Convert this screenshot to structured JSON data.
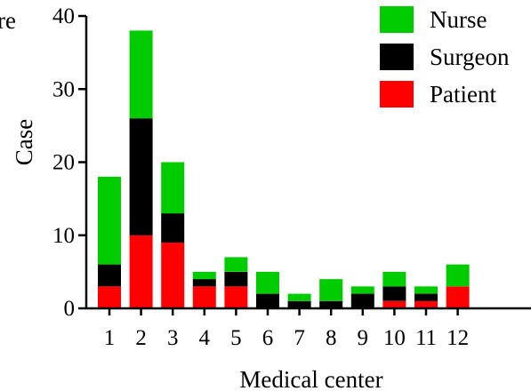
{
  "figure": {
    "cut_text": "re"
  },
  "chart_data": {
    "type": "bar",
    "stacked": true,
    "categories": [
      "1",
      "2",
      "3",
      "4",
      "5",
      "6",
      "7",
      "8",
      "9",
      "10",
      "11",
      "12"
    ],
    "series": [
      {
        "name": "Patient",
        "color": "#ff0000",
        "values": [
          3,
          10,
          9,
          3,
          3,
          0,
          0,
          0,
          0,
          1,
          1,
          3
        ]
      },
      {
        "name": "Surgeon",
        "color": "#000000",
        "values": [
          3,
          16,
          4,
          1,
          2,
          2,
          1,
          1,
          2,
          2,
          1,
          0
        ]
      },
      {
        "name": "Nurse",
        "color": "#00cc00",
        "values": [
          12,
          12,
          7,
          1,
          2,
          3,
          1,
          3,
          1,
          2,
          1,
          3
        ]
      }
    ],
    "legend_order": [
      "Nurse",
      "Surgeon",
      "Patient"
    ],
    "xlabel": "Medical center",
    "ylabel": "Case",
    "ylim": [
      0,
      40
    ],
    "yticks": [
      0,
      10,
      20,
      30,
      40
    ],
    "grid": false,
    "legend_position": "top-right"
  }
}
